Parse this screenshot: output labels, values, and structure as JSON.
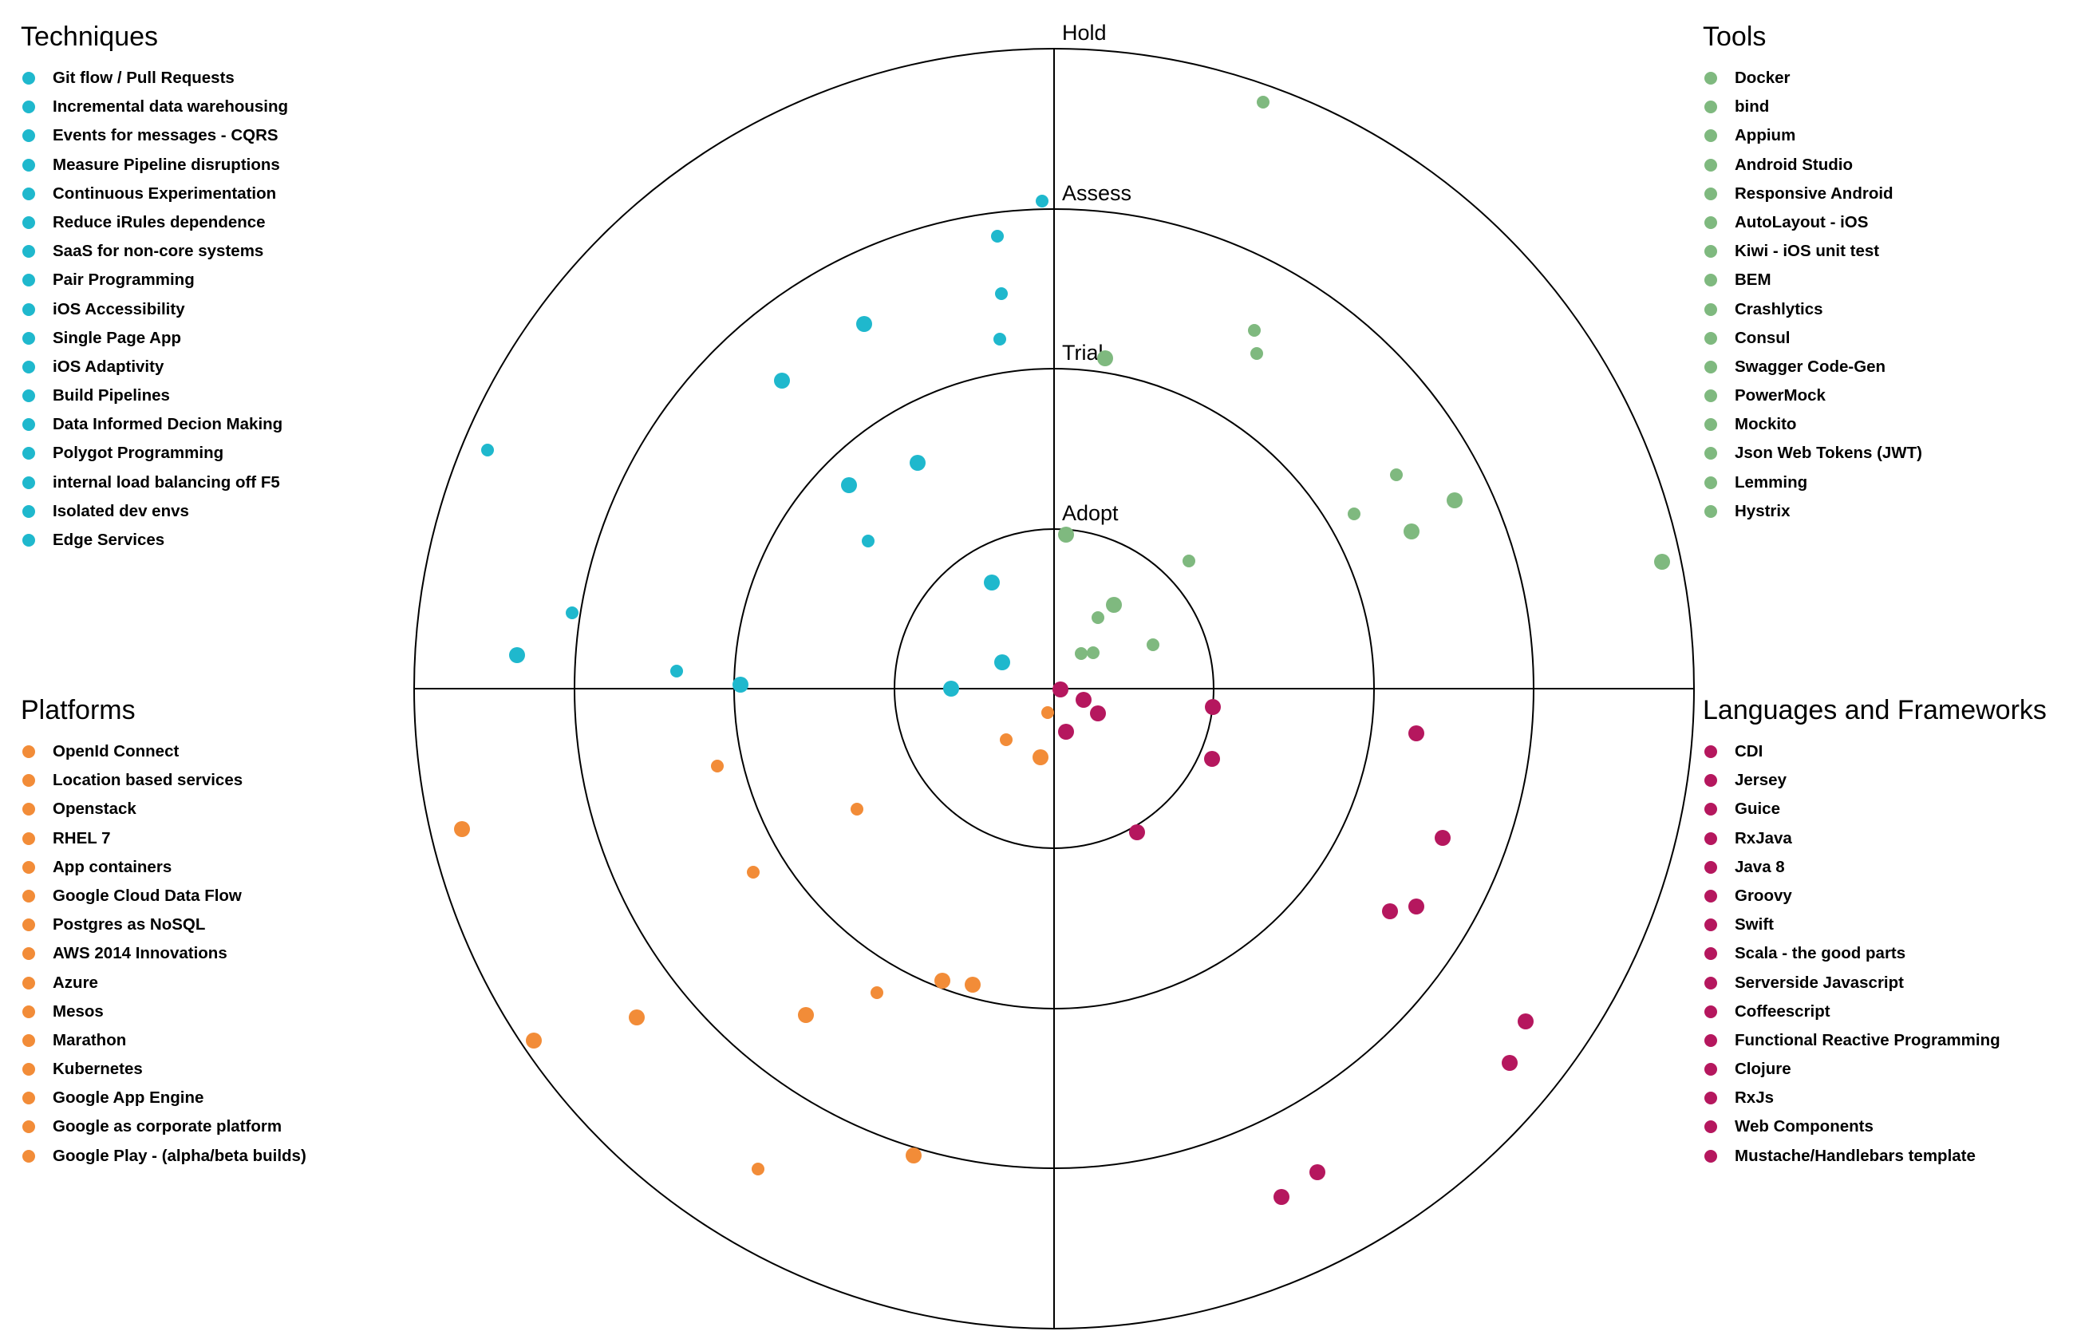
{
  "rings": [
    "Adopt",
    "Trial",
    "Assess",
    "Hold"
  ],
  "colors": {
    "techniques": "#1fb8cd",
    "tools": "#7fb97f",
    "platforms": "#f28c38",
    "languages": "#b5175e"
  },
  "quadrants": {
    "techniques": {
      "title": "Techniques",
      "items": [
        "Git flow / Pull Requests",
        "Incremental data warehousing",
        "Events for messages - CQRS",
        "Measure Pipeline disruptions",
        "Continuous Experimentation",
        "Reduce iRules dependence",
        "SaaS for non-core systems",
        "Pair Programming",
        "iOS Accessibility",
        "Single Page App",
        "iOS Adaptivity",
        "Build Pipelines",
        "Data Informed Decion Making",
        "Polygot Programming",
        "internal load balancing off F5",
        "Isolated dev envs",
        "Edge Services"
      ]
    },
    "tools": {
      "title": "Tools",
      "items": [
        "Docker",
        "bind",
        "Appium",
        "Android Studio",
        "Responsive Android",
        "AutoLayout - iOS",
        "Kiwi - iOS unit test",
        "BEM",
        "Crashlytics",
        "Consul",
        "Swagger Code-Gen",
        "PowerMock",
        "Mockito",
        "Json Web Tokens (JWT)",
        "Lemming",
        "Hystrix"
      ]
    },
    "platforms": {
      "title": "Platforms",
      "items": [
        "OpenId Connect",
        "Location based services",
        "Openstack",
        "RHEL 7",
        "App containers",
        "Google Cloud Data Flow",
        "Postgres as NoSQL",
        "AWS 2014 Innovations",
        "Azure",
        "Mesos",
        "Marathon",
        "Kubernetes",
        "Google App Engine",
        "Google as corporate platform",
        "Google Play - (alpha/beta builds)"
      ]
    },
    "languages": {
      "title": "Languages and Frameworks",
      "items": [
        "CDI",
        "Jersey",
        "Guice",
        "RxJava",
        "Java 8",
        "Groovy",
        "Swift",
        "Scala - the good parts",
        "Serverside Javascript",
        "Coffeescript",
        "Functional Reactive Programming",
        "Clojure",
        "RxJs",
        "Web Components",
        "Mustache/Handlebars template"
      ]
    }
  }
}
